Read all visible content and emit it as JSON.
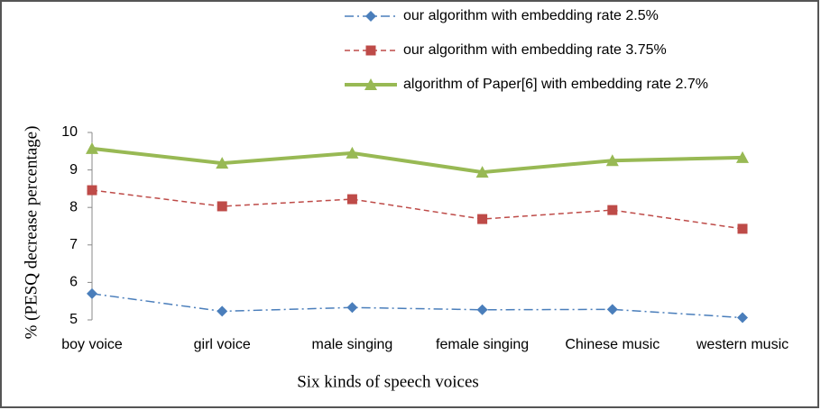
{
  "chart_data": {
    "type": "line",
    "x_label": "Six kinds of speech voices",
    "y_label": "% (PESQ decrease  percentage)",
    "categories": [
      "boy voice",
      "girl voice",
      "male singing",
      "female singing",
      "Chinese music",
      "western music"
    ],
    "series": [
      {
        "name": "our algorithm with embedding rate 2.5%",
        "color": "#4a7ebb",
        "marker": "diamond",
        "dash": "dashdot",
        "width": 1.5,
        "values": [
          5.7,
          5.23,
          5.33,
          5.27,
          5.28,
          5.06
        ]
      },
      {
        "name": "our algorithm with embedding rate 3.75%",
        "color": "#be4b48",
        "marker": "square",
        "dash": "dashed",
        "width": 1.5,
        "values": [
          8.46,
          8.03,
          8.22,
          7.69,
          7.93,
          7.43
        ]
      },
      {
        "name": "algorithm of Paper[6] with embedding rate 2.7%",
        "color": "#98b954",
        "marker": "triangle",
        "dash": "solid",
        "width": 4,
        "values": [
          9.57,
          9.18,
          9.45,
          8.94,
          9.25,
          9.33
        ]
      }
    ],
    "ylim": [
      5,
      10
    ],
    "yticks": [
      5,
      6,
      7,
      8,
      9,
      10
    ],
    "grid": false
  }
}
